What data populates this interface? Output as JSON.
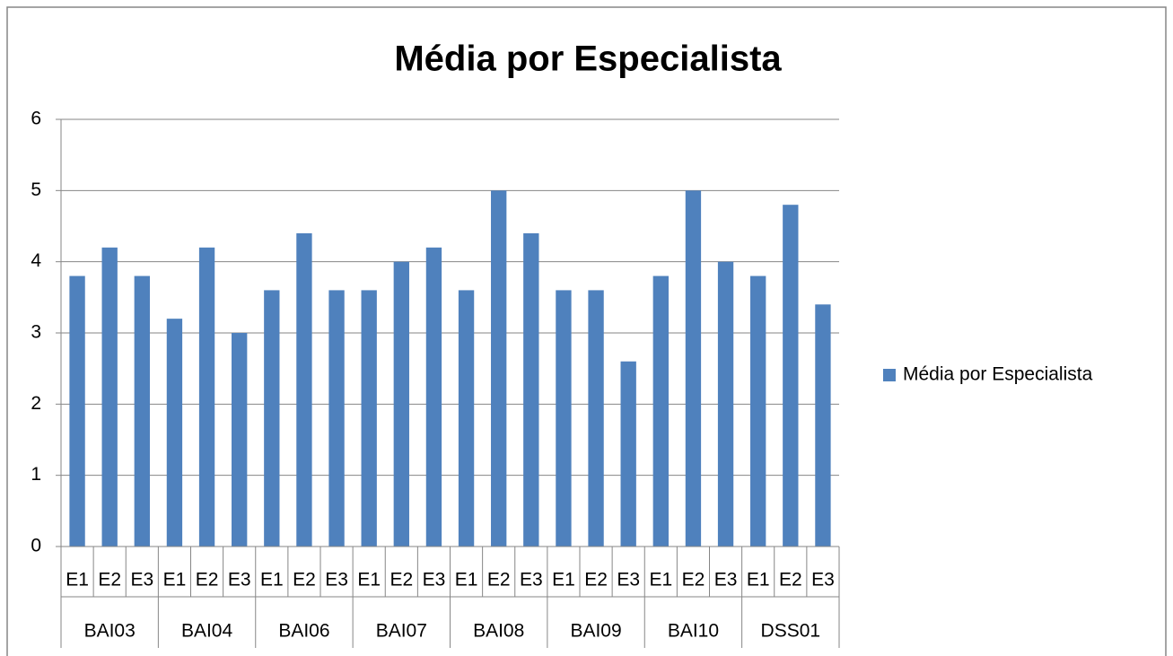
{
  "chart_data": {
    "type": "bar",
    "title": "Média por Especialista",
    "categories": [
      "E1",
      "E2",
      "E3",
      "E1",
      "E2",
      "E3",
      "E1",
      "E2",
      "E3",
      "E1",
      "E2",
      "E3",
      "E1",
      "E2",
      "E3",
      "E1",
      "E2",
      "E3",
      "E1",
      "E2",
      "E3",
      "E1",
      "E2",
      "E3"
    ],
    "groups": [
      "BAI03",
      "BAI04",
      "BAI06",
      "BAI07",
      "BAI08",
      "BAI09",
      "BAI10",
      "DSS01"
    ],
    "series": [
      {
        "name": "Média por Especialista",
        "color": "#4f81bd",
        "values": [
          3.8,
          4.2,
          3.8,
          3.2,
          4.2,
          3.0,
          3.6,
          4.4,
          3.6,
          3.6,
          4.0,
          4.2,
          3.6,
          5.0,
          4.4,
          3.6,
          3.6,
          2.6,
          3.8,
          5.0,
          4.0,
          3.8,
          4.8,
          3.4
        ]
      }
    ],
    "ylim": [
      0,
      6
    ],
    "yticks": [
      0,
      1,
      2,
      3,
      4,
      5,
      6
    ],
    "grid": true,
    "legend": "right"
  }
}
